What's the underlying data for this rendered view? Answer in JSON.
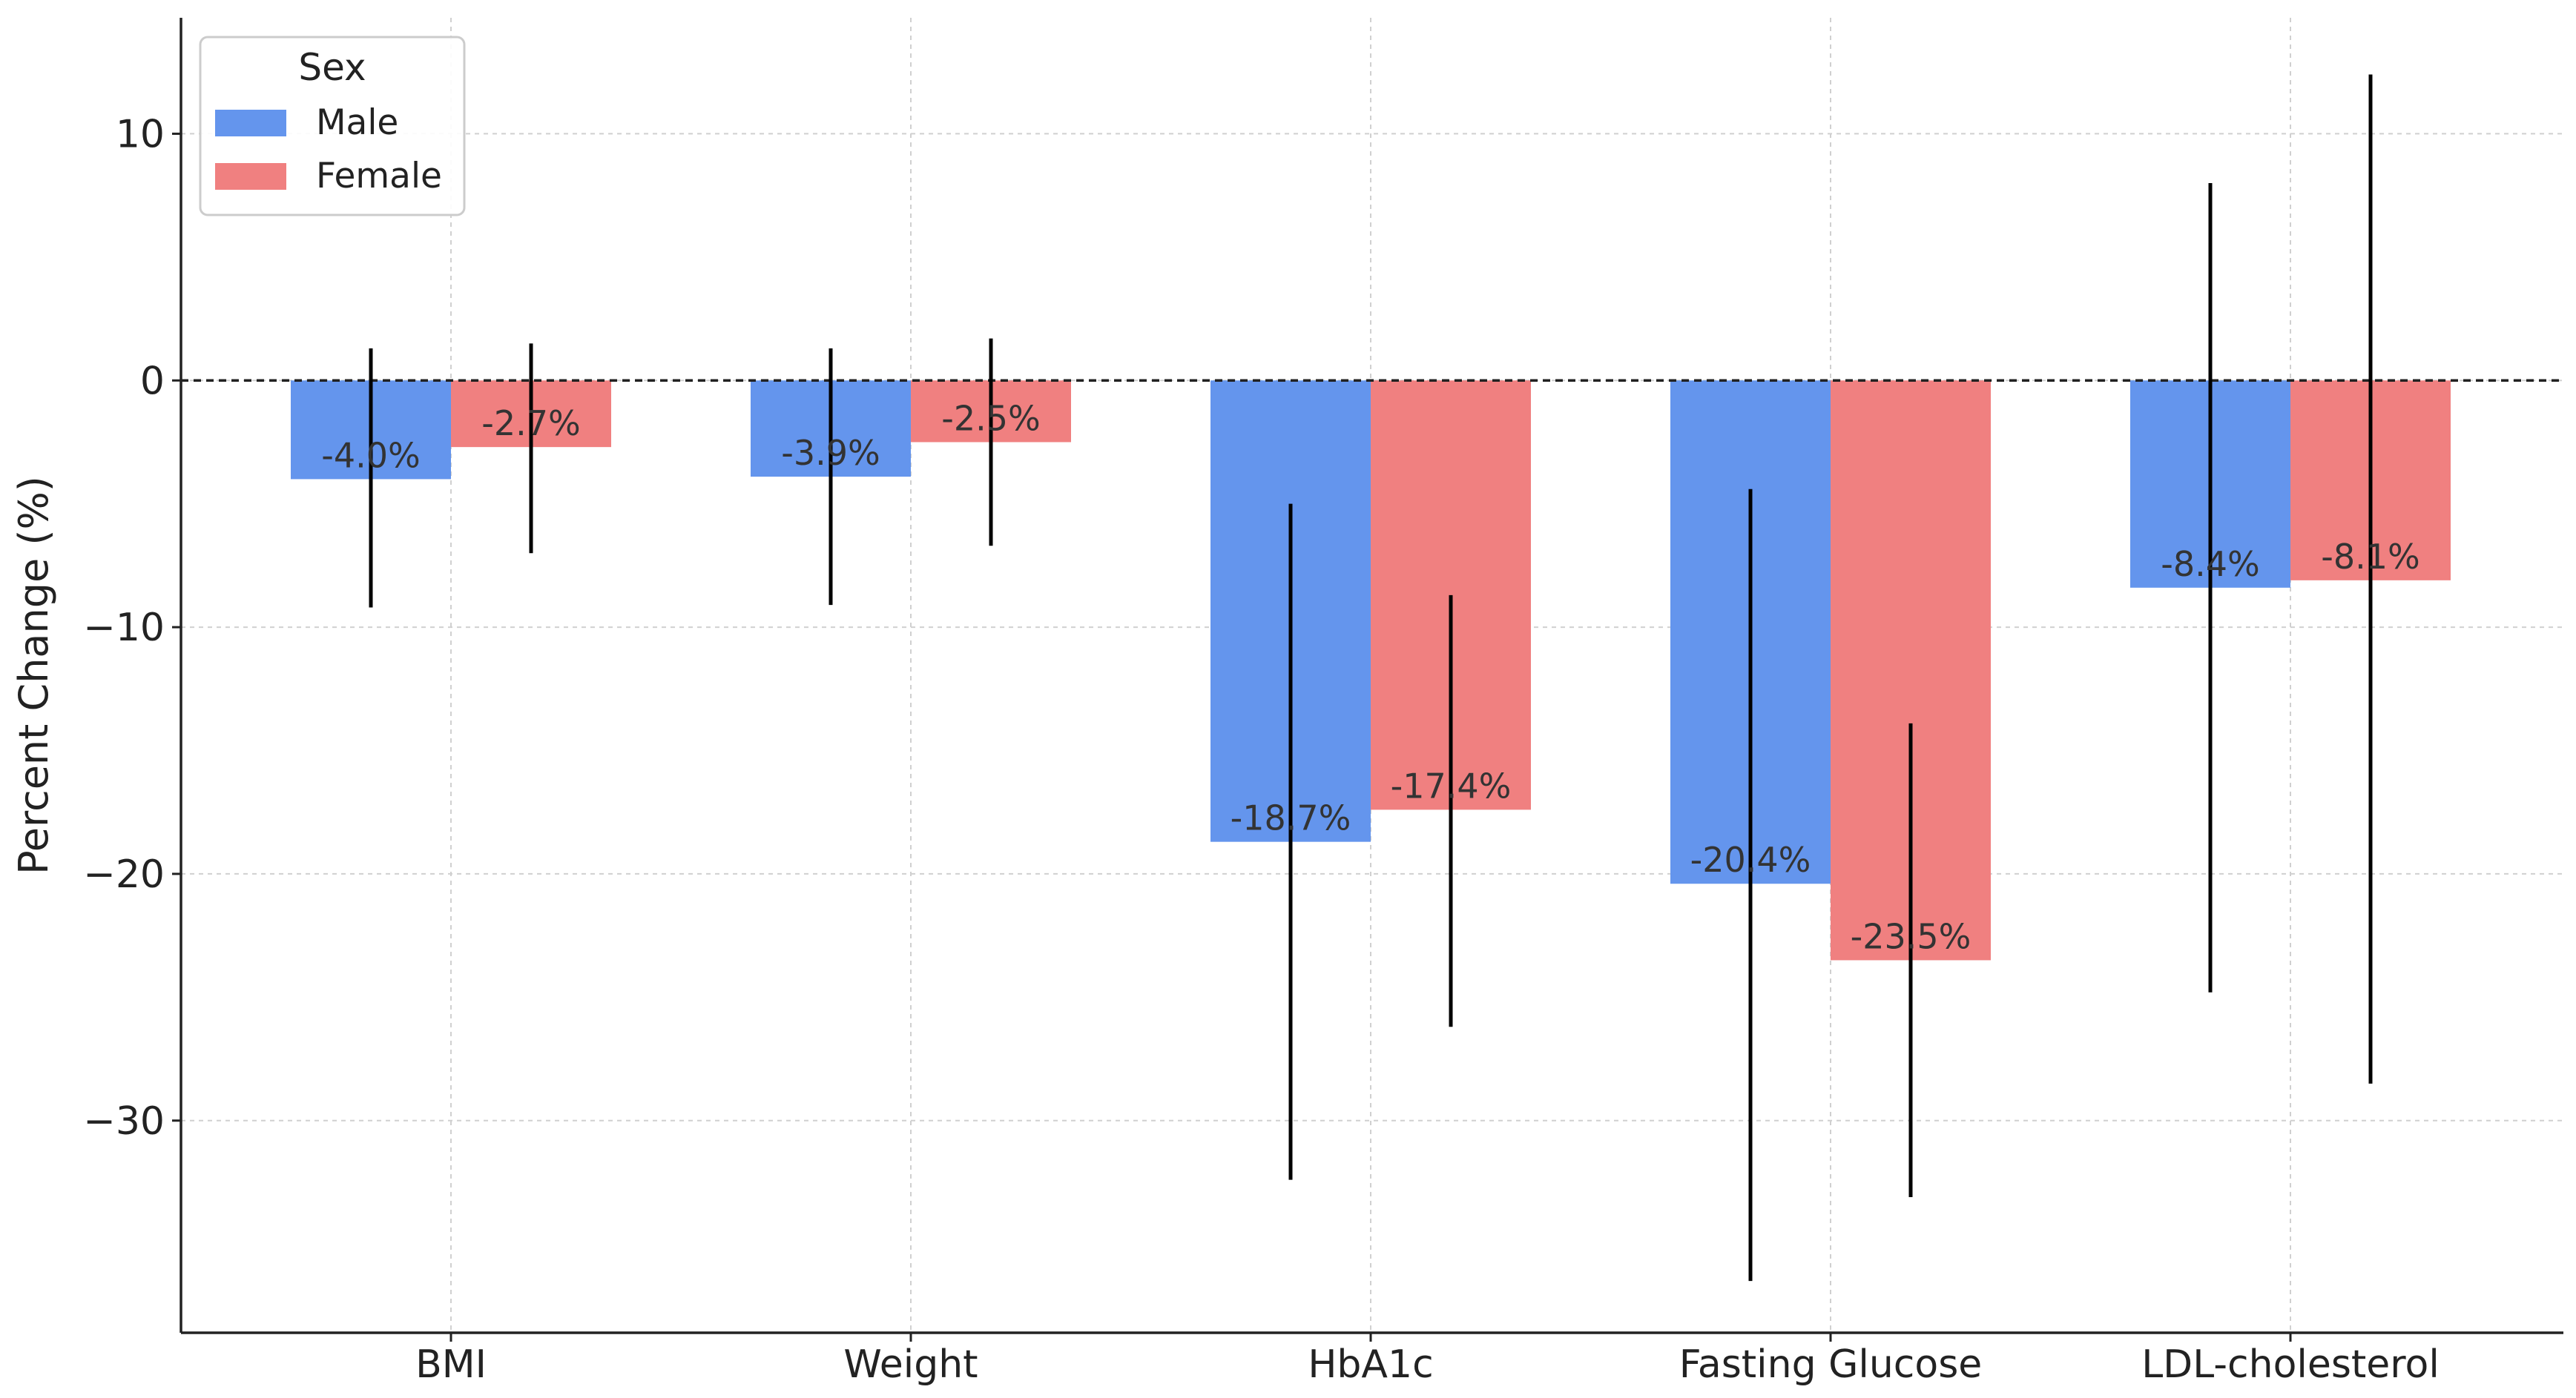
{
  "chart_data": {
    "type": "bar",
    "title": "",
    "xlabel": "",
    "ylabel": "Percent Change (%)",
    "categories": [
      "BMI",
      "Weight",
      "HbA1c",
      "Fasting Glucose",
      "LDL-cholesterol"
    ],
    "series": [
      {
        "name": "Male",
        "color": "#6495ED",
        "values": [
          -4.0,
          -3.9,
          -18.7,
          -20.4,
          -8.4
        ],
        "labels": [
          "-4.0%",
          "-3.9%",
          "-18.7%",
          "-20.4%",
          "-8.4%"
        ],
        "error_low": [
          -9.2,
          -9.1,
          -32.4,
          -36.5,
          -24.8
        ],
        "error_high": [
          1.3,
          1.3,
          -5.0,
          -4.4,
          8.0
        ]
      },
      {
        "name": "Female",
        "color": "#F08080",
        "values": [
          -2.7,
          -2.5,
          -17.4,
          -23.5,
          -8.1
        ],
        "labels": [
          "-2.7%",
          "-2.5%",
          "-17.4%",
          "-23.5%",
          "-8.1%"
        ],
        "error_low": [
          -7.0,
          -6.7,
          -26.2,
          -33.1,
          -28.5
        ],
        "error_high": [
          1.5,
          1.7,
          -8.7,
          -13.9,
          12.4
        ]
      }
    ],
    "yticks": [
      10,
      0,
      -10,
      -20,
      -30
    ],
    "ytick_labels": [
      "10",
      "0",
      "−10",
      "−20",
      "−30"
    ],
    "ylim": [
      -38.6,
      14.7
    ],
    "grid": true,
    "reference_line": 0,
    "legend": {
      "title": "Sex",
      "position": "top-left"
    }
  }
}
